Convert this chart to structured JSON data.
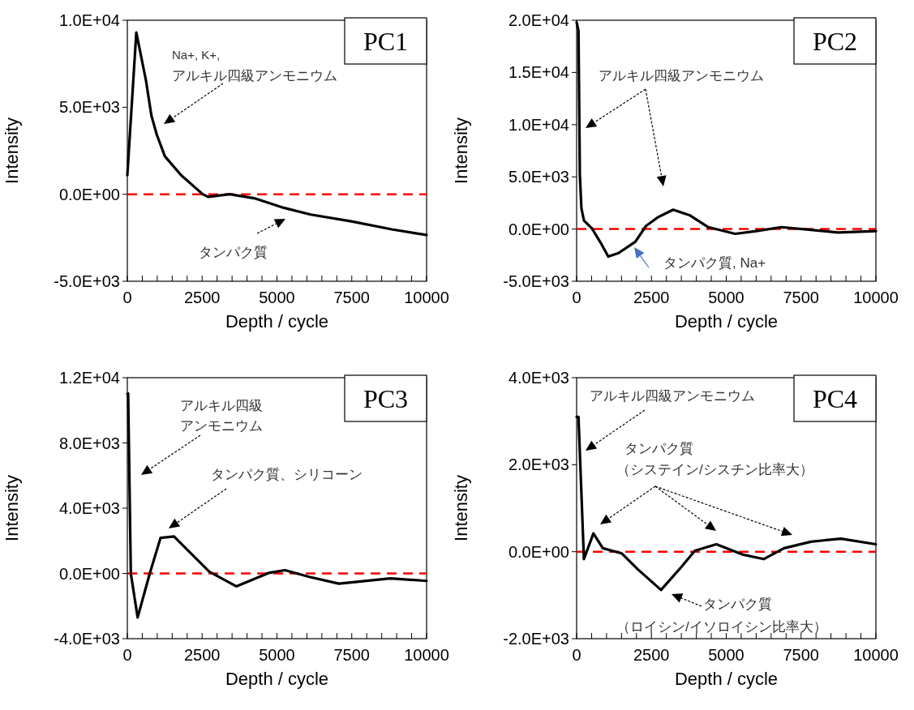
{
  "chart_data": [
    {
      "type": "line",
      "title": "PC1",
      "xlabel": "Depth / cycle",
      "ylabel": "Intensity",
      "x": [
        0,
        300,
        623,
        805,
        985,
        1255,
        1800,
        2520,
        2700,
        3420,
        4240,
        5230,
        6130,
        7490,
        8840,
        10000
      ],
      "series": [
        {
          "color": "#000000",
          "values": [
            1100,
            9300,
            6540,
            4520,
            3420,
            2180,
            1090,
            0,
            -150,
            0,
            -230,
            -780,
            -1170,
            -1560,
            -2020,
            -2340
          ]
        }
      ],
      "xlim": [
        0,
        10000
      ],
      "ylim": [
        -5000,
        10000
      ],
      "xticks": [
        0,
        {
          "value": 500,
          "label": null
        },
        {
          "value": 1000,
          "label": null
        },
        {
          "value": 1500,
          "label": null
        },
        {
          "value": 2000,
          "label": null
        },
        2500,
        {
          "value": 3000,
          "label": null
        },
        {
          "value": 3500,
          "label": null
        },
        {
          "value": 4000,
          "label": null
        },
        {
          "value": 4500,
          "label": null
        },
        5000,
        {
          "value": 5500,
          "label": null
        },
        {
          "value": 6000,
          "label": null
        },
        {
          "value": 6500,
          "label": null
        },
        {
          "value": 7000,
          "label": null
        },
        7500,
        {
          "value": 8000,
          "label": null
        },
        {
          "value": 8500,
          "label": null
        },
        {
          "value": 9000,
          "label": null
        },
        {
          "value": 9500,
          "label": null
        },
        10000
      ],
      "yticks": [
        {
          "value": -5000,
          "label": "-5.0E+03"
        },
        {
          "value": 0,
          "label": "0.0E+00"
        },
        {
          "value": 5000,
          "label": "5.0E+03"
        },
        {
          "value": 10000,
          "label": "1.0E+04"
        }
      ],
      "ref_lines": [
        {
          "axis": "y",
          "value": 0,
          "color": "#ff0000",
          "line_style": "dashed"
        }
      ],
      "annotations": [
        "Na+, K+,",
        "アルキル四級アンモニウム",
        "タンパク質"
      ]
    },
    {
      "type": "line",
      "title": "PC2",
      "xlabel": "Depth / cycle",
      "ylabel": "Intensity",
      "x": [
        0,
        62,
        108,
        160,
        244,
        515,
        800,
        1057,
        1400,
        1960,
        2320,
        2700,
        3225,
        3770,
        4400,
        5300,
        6000,
        6840,
        7830,
        8730,
        10000
      ],
      "series": [
        {
          "color": "#000000",
          "values": [
            19800,
            19000,
            5180,
            2000,
            820,
            50,
            -1300,
            -2640,
            -2300,
            -1230,
            300,
            1100,
            1850,
            1330,
            180,
            -460,
            -200,
            180,
            -80,
            -330,
            -200
          ]
        }
      ],
      "xlim": [
        0,
        10000
      ],
      "ylim": [
        -5000,
        20000
      ],
      "xticks": [
        0,
        {
          "value": 500,
          "label": null
        },
        {
          "value": 1000,
          "label": null
        },
        {
          "value": 1500,
          "label": null
        },
        {
          "value": 2000,
          "label": null
        },
        2500,
        {
          "value": 3000,
          "label": null
        },
        {
          "value": 3500,
          "label": null
        },
        {
          "value": 4000,
          "label": null
        },
        {
          "value": 4500,
          "label": null
        },
        5000,
        {
          "value": 5500,
          "label": null
        },
        {
          "value": 6000,
          "label": null
        },
        {
          "value": 6500,
          "label": null
        },
        {
          "value": 7000,
          "label": null
        },
        7500,
        {
          "value": 8000,
          "label": null
        },
        {
          "value": 8500,
          "label": null
        },
        {
          "value": 9000,
          "label": null
        },
        {
          "value": 9500,
          "label": null
        },
        10000
      ],
      "yticks": [
        {
          "value": -5000,
          "label": "-5.0E+03"
        },
        {
          "value": 0,
          "label": "0.0E+00"
        },
        {
          "value": 5000,
          "label": "5.0E+03"
        },
        {
          "value": 10000,
          "label": "1.0E+04"
        },
        {
          "value": 15000,
          "label": "1.5E+04"
        },
        {
          "value": 20000,
          "label": "2.0E+04"
        }
      ],
      "ref_lines": [
        {
          "axis": "y",
          "value": 0,
          "color": "#ff0000",
          "line_style": "dashed"
        }
      ],
      "annotations": [
        "アルキル四級アンモニウム",
        "タンパク質, Na+"
      ]
    },
    {
      "type": "line",
      "title": "PC3",
      "xlabel": "Depth / cycle",
      "ylabel": "Intensity",
      "x": [
        0,
        27,
        117,
        344,
        750,
        1110,
        1560,
        2100,
        2740,
        3640,
        4720,
        5270,
        6080,
        7070,
        8790,
        10000
      ],
      "series": [
        {
          "color": "#000000",
          "values": [
            11000,
            11030,
            0,
            -2700,
            0,
            2180,
            2270,
            1270,
            110,
            -790,
            30,
            200,
            -210,
            -630,
            -300,
            -460
          ]
        }
      ],
      "xlim": [
        0,
        10000
      ],
      "ylim": [
        -4000,
        12000
      ],
      "xticks": [
        0,
        {
          "value": 500,
          "label": null
        },
        {
          "value": 1000,
          "label": null
        },
        {
          "value": 1500,
          "label": null
        },
        {
          "value": 2000,
          "label": null
        },
        2500,
        {
          "value": 3000,
          "label": null
        },
        {
          "value": 3500,
          "label": null
        },
        {
          "value": 4000,
          "label": null
        },
        {
          "value": 4500,
          "label": null
        },
        5000,
        {
          "value": 5500,
          "label": null
        },
        {
          "value": 6000,
          "label": null
        },
        {
          "value": 6500,
          "label": null
        },
        {
          "value": 7000,
          "label": null
        },
        7500,
        {
          "value": 8000,
          "label": null
        },
        {
          "value": 8500,
          "label": null
        },
        {
          "value": 9000,
          "label": null
        },
        {
          "value": 9500,
          "label": null
        },
        10000
      ],
      "yticks": [
        {
          "value": -4000,
          "label": "-4.0E+03"
        },
        {
          "value": 0,
          "label": "0.0E+00"
        },
        {
          "value": 4000,
          "label": "4.0E+03"
        },
        {
          "value": 8000,
          "label": "8.0E+03"
        },
        {
          "value": 12000,
          "label": "1.2E+04"
        }
      ],
      "ref_lines": [
        {
          "axis": "y",
          "value": 0,
          "color": "#ff0000",
          "line_style": "dashed"
        }
      ],
      "annotations": [
        "アルキル四級",
        "アンモニウム",
        "タンパク質、シリコーン"
      ]
    },
    {
      "type": "line",
      "title": "PC4",
      "xlabel": "Depth / cycle",
      "ylabel": "Intensity",
      "x": [
        0,
        62,
        244,
        561,
        875,
        1510,
        2050,
        2820,
        3500,
        3950,
        4670,
        5570,
        6250,
        6930,
        7830,
        8830,
        10000
      ],
      "series": [
        {
          "color": "#000000",
          "values": [
            3100,
            3100,
            -170,
            420,
            80,
            -40,
            -410,
            -880,
            -350,
            20,
            170,
            -70,
            -170,
            80,
            230,
            300,
            170
          ]
        }
      ],
      "xlim": [
        0,
        10000
      ],
      "ylim": [
        -2000,
        4000
      ],
      "xticks": [
        0,
        {
          "value": 500,
          "label": null
        },
        {
          "value": 1000,
          "label": null
        },
        {
          "value": 1500,
          "label": null
        },
        {
          "value": 2000,
          "label": null
        },
        2500,
        {
          "value": 3000,
          "label": null
        },
        {
          "value": 3500,
          "label": null
        },
        {
          "value": 4000,
          "label": null
        },
        {
          "value": 4500,
          "label": null
        },
        5000,
        {
          "value": 5500,
          "label": null
        },
        {
          "value": 6000,
          "label": null
        },
        {
          "value": 6500,
          "label": null
        },
        {
          "value": 7000,
          "label": null
        },
        7500,
        {
          "value": 8000,
          "label": null
        },
        {
          "value": 8500,
          "label": null
        },
        {
          "value": 9000,
          "label": null
        },
        {
          "value": 9500,
          "label": null
        },
        10000
      ],
      "yticks": [
        {
          "value": -2000,
          "label": "-2.0E+03"
        },
        {
          "value": 0,
          "label": "0.0E+00"
        },
        {
          "value": 2000,
          "label": "2.0E+03"
        },
        {
          "value": 4000,
          "label": "4.0E+03"
        }
      ],
      "ref_lines": [
        {
          "axis": "y",
          "value": 0,
          "color": "#ff0000",
          "line_style": "dashed"
        }
      ],
      "annotations": [
        "アルキル四級アンモニウム",
        "タンパク質",
        "（システイン/シスチン比率大）",
        "タンパク質",
        "（ロイシン/イソロイシン比率大）"
      ]
    }
  ]
}
